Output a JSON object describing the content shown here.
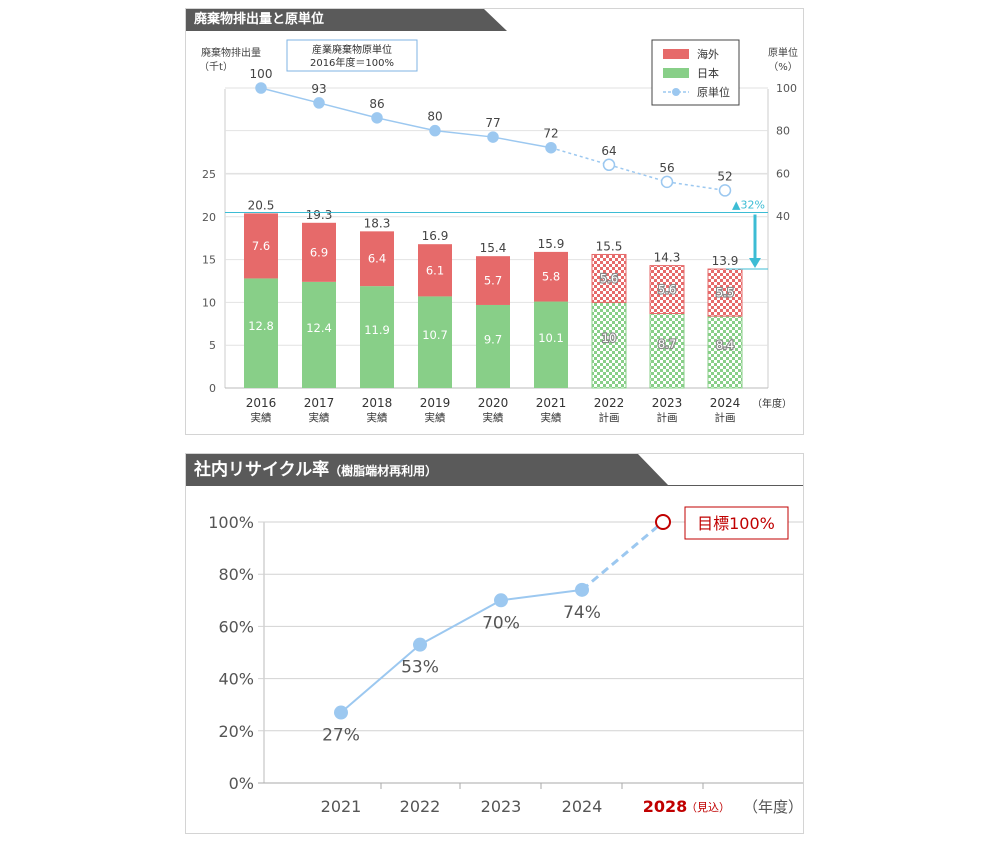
{
  "colors": {
    "overseas": "#e66a6a",
    "japan": "#88cf88",
    "intensity_line": "#9cc8f0",
    "recycle_line": "#9cc8f0",
    "target": "#c00000",
    "accent_cyan": "#3cbcd4",
    "tab_bg": "#5a5a5a"
  },
  "chart_data": [
    {
      "type": "bar",
      "title": "廃棄物排出量と原単位",
      "ylabel_left": "廃棄物排出量",
      "ylabel_left_unit": "（千t）",
      "ylabel_right": "原単位",
      "ylabel_right_unit": "（%）",
      "note_line1": "産業廃棄物原単位",
      "note_line2": "2016年度＝100%",
      "xunit": "（年度）",
      "ylim_left": [
        0,
        25
      ],
      "left_ticks": [
        "0",
        "5",
        "10",
        "15",
        "20",
        "25"
      ],
      "ylim_right": [
        0,
        100
      ],
      "right_ticks": [
        "40",
        "60",
        "80",
        "100"
      ],
      "categories": [
        "2016",
        "2017",
        "2018",
        "2019",
        "2020",
        "2021",
        "2022",
        "2023",
        "2024"
      ],
      "category_sub": [
        "実績",
        "実績",
        "実績",
        "実績",
        "実績",
        "実績",
        "計画",
        "計画",
        "計画"
      ],
      "planned": [
        false,
        false,
        false,
        false,
        false,
        false,
        true,
        true,
        true
      ],
      "series": [
        {
          "name": "日本",
          "values": [
            12.8,
            12.4,
            11.9,
            10.7,
            9.7,
            10.1,
            10,
            8.7,
            8.4
          ],
          "labels": [
            "12.8",
            "12.4",
            "11.9",
            "10.7",
            "9.7",
            "10.1",
            "10",
            "8.7",
            "8.4"
          ]
        },
        {
          "name": "海外",
          "values": [
            7.6,
            6.9,
            6.4,
            6.1,
            5.7,
            5.8,
            5.6,
            5.6,
            5.5
          ],
          "labels": [
            "7.6",
            "6.9",
            "6.4",
            "6.1",
            "5.7",
            "5.8",
            "5.6",
            "5.6",
            "5.5"
          ]
        }
      ],
      "totals": [
        "20.5",
        "19.3",
        "18.3",
        "16.9",
        "15.4",
        "15.9",
        "15.5",
        "14.3",
        "13.9"
      ],
      "line": {
        "name": "原単位",
        "values": [
          100,
          93,
          86,
          80,
          77,
          72,
          64,
          56,
          52
        ],
        "labels": [
          "100",
          "93",
          "86",
          "80",
          "77",
          "72",
          "64",
          "56",
          "52"
        ]
      },
      "reduction_label": "▲32%",
      "legend_position": "top-right"
    },
    {
      "type": "line",
      "title": "社内リサイクル率",
      "subtitle": "（樹脂端材再利用）",
      "ylim": [
        0,
        100
      ],
      "y_ticks": [
        "0%",
        "20%",
        "40%",
        "60%",
        "80%",
        "100%"
      ],
      "categories": [
        "2021",
        "2022",
        "2023",
        "2024",
        "2028"
      ],
      "target_note": "（見込）",
      "xunit": "（年度）",
      "values": [
        27,
        53,
        70,
        74,
        100
      ],
      "labels": [
        "27%",
        "53%",
        "70%",
        "74%"
      ],
      "target_label": "目標100%",
      "grid": true
    }
  ]
}
